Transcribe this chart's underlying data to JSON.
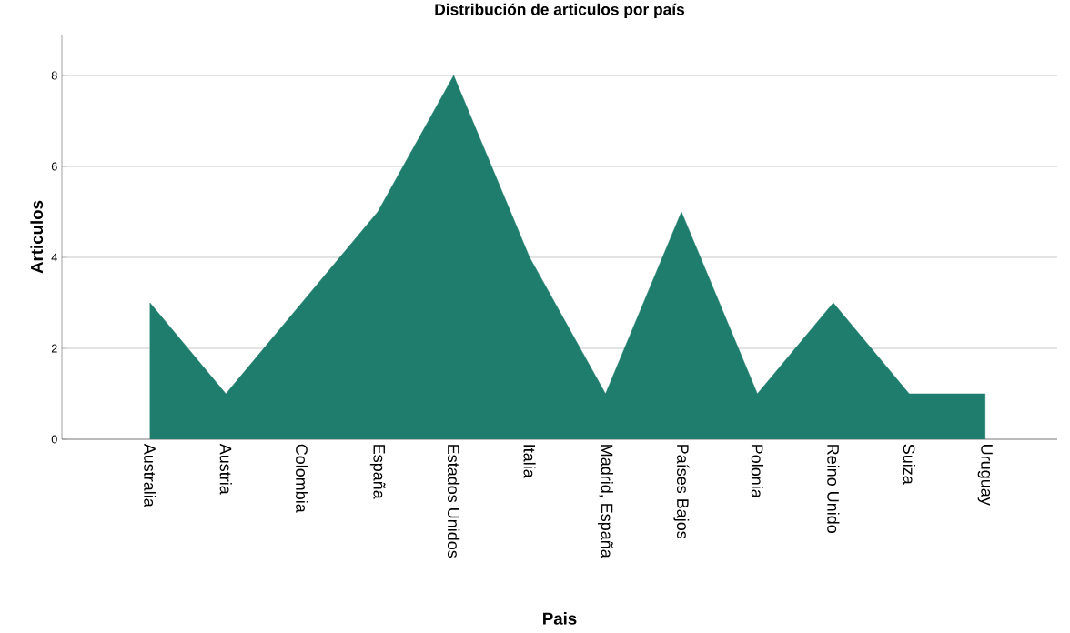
{
  "chart_data": {
    "type": "area",
    "title": "Distribución de articulos por país",
    "xlabel": "Pais",
    "ylabel": "Articulos",
    "categories": [
      "Australia",
      "Austria",
      "Colombia",
      "España",
      "Estados Unidos",
      "Italia",
      "Madrid, España",
      "Países Bajos",
      "Polonia",
      "Reino Unido",
      "Suiza",
      "Uruguay"
    ],
    "values": [
      3,
      1,
      3,
      5,
      8,
      4,
      1,
      5,
      1,
      3,
      1,
      1
    ],
    "color": "#1f7d6e",
    "ylim": [
      0,
      8.9
    ],
    "yticks": [
      0,
      2,
      4,
      6,
      8
    ],
    "grid": "y"
  }
}
